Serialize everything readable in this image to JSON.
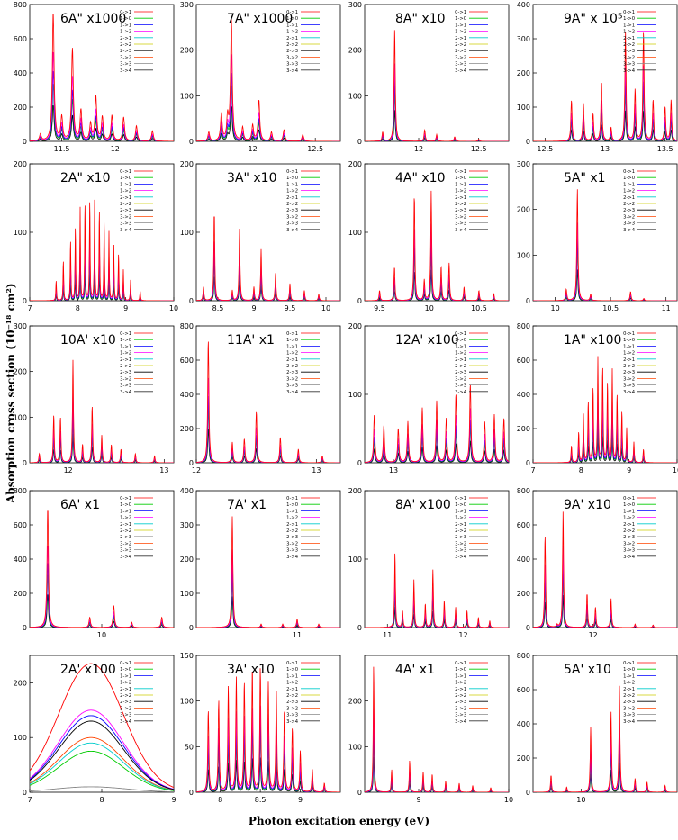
{
  "figure": {
    "ylabel": "Absorption cross section (10⁻¹⁸ cm²)",
    "xlabel": "Photon excitation energy (eV)"
  },
  "legend_entries": [
    "0->1",
    "1->0",
    "1->1",
    "1->2",
    "2->1",
    "2->2",
    "2->3",
    "3->2",
    "3->3",
    "3->4"
  ],
  "legend_colors": [
    "#ff0000",
    "#00cc00",
    "#0000ff",
    "#ff00ff",
    "#00cccc",
    "#cccc00",
    "#000000",
    "#ff4500",
    "#888888",
    "#333333"
  ],
  "chart_data": [
    {
      "type": "line",
      "title": "6A\" x1000",
      "xlim": [
        11.2,
        12.55
      ],
      "ylim": [
        0,
        800
      ],
      "yticks": [
        0,
        200,
        400,
        600,
        800
      ],
      "xticks": [
        11.5,
        12
      ],
      "peaks": [
        [
          11.3,
          40
        ],
        [
          11.42,
          750
        ],
        [
          11.5,
          140
        ],
        [
          11.6,
          540
        ],
        [
          11.68,
          180
        ],
        [
          11.77,
          100
        ],
        [
          11.82,
          260
        ],
        [
          11.88,
          140
        ],
        [
          11.97,
          150
        ],
        [
          12.08,
          140
        ],
        [
          12.2,
          90
        ],
        [
          12.35,
          60
        ]
      ],
      "width": 0.01
    },
    {
      "type": "line",
      "title": "7A\" x1000",
      "xlim": [
        11.55,
        12.7
      ],
      "ylim": [
        0,
        300
      ],
      "yticks": [
        0,
        100,
        200,
        300
      ],
      "xticks": [
        12,
        12.5
      ],
      "peaks": [
        [
          11.65,
          20
        ],
        [
          11.75,
          60
        ],
        [
          11.8,
          50
        ],
        [
          11.83,
          270
        ],
        [
          11.92,
          30
        ],
        [
          12.0,
          35
        ],
        [
          12.05,
          90
        ],
        [
          12.15,
          20
        ],
        [
          12.25,
          25
        ],
        [
          12.4,
          15
        ]
      ],
      "width": 0.008
    },
    {
      "type": "line",
      "title": "8A\" x10",
      "xlim": [
        11.55,
        12.75
      ],
      "ylim": [
        0,
        300
      ],
      "yticks": [
        0,
        100,
        200,
        300
      ],
      "xticks": [
        12,
        12.5
      ],
      "peaks": [
        [
          11.7,
          20
        ],
        [
          11.8,
          245
        ],
        [
          12.05,
          25
        ],
        [
          12.15,
          15
        ],
        [
          12.3,
          10
        ],
        [
          12.5,
          5
        ]
      ],
      "width": 0.006
    },
    {
      "type": "line",
      "title": "9A\" x 10⁵",
      "xlim": [
        12.4,
        13.6
      ],
      "ylim": [
        0,
        400
      ],
      "yticks": [
        0,
        100,
        200,
        300,
        400
      ],
      "xticks": [
        12.5,
        13,
        13.5
      ],
      "peaks": [
        [
          12.72,
          120
        ],
        [
          12.82,
          110
        ],
        [
          12.9,
          80
        ],
        [
          12.97,
          175
        ],
        [
          13.05,
          40
        ],
        [
          13.17,
          320
        ],
        [
          13.25,
          150
        ],
        [
          13.32,
          320
        ],
        [
          13.4,
          120
        ],
        [
          13.5,
          100
        ],
        [
          13.55,
          120
        ]
      ],
      "width": 0.006
    },
    {
      "type": "line",
      "title": "2A\" x10",
      "xlim": [
        7,
        10
      ],
      "ylim": [
        0,
        200
      ],
      "yticks": [
        0,
        100,
        200
      ],
      "xticks": [
        7,
        8,
        9,
        10
      ],
      "peaks": [
        [
          7.55,
          30
        ],
        [
          7.7,
          60
        ],
        [
          7.85,
          90
        ],
        [
          7.95,
          110
        ],
        [
          8.05,
          135
        ],
        [
          8.15,
          145
        ],
        [
          8.25,
          150
        ],
        [
          8.35,
          145
        ],
        [
          8.45,
          135
        ],
        [
          8.55,
          120
        ],
        [
          8.65,
          100
        ],
        [
          8.75,
          85
        ],
        [
          8.85,
          70
        ],
        [
          8.95,
          45
        ],
        [
          9.1,
          30
        ],
        [
          9.3,
          15
        ]
      ],
      "width": 0.008
    },
    {
      "type": "line",
      "title": "3A\" x10",
      "xlim": [
        8.2,
        10.2
      ],
      "ylim": [
        0,
        200
      ],
      "yticks": [
        0,
        100,
        200
      ],
      "xticks": [
        8.5,
        9,
        9.5,
        10
      ],
      "peaks": [
        [
          8.3,
          20
        ],
        [
          8.45,
          130
        ],
        [
          8.7,
          15
        ],
        [
          8.8,
          105
        ],
        [
          9.0,
          20
        ],
        [
          9.1,
          75
        ],
        [
          9.3,
          40
        ],
        [
          9.5,
          25
        ],
        [
          9.7,
          15
        ],
        [
          9.9,
          10
        ]
      ],
      "width": 0.008
    },
    {
      "type": "line",
      "title": "4A\" x10",
      "xlim": [
        9.35,
        10.8
      ],
      "ylim": [
        0,
        200
      ],
      "yticks": [
        0,
        100,
        200
      ],
      "xticks": [
        9.5,
        10,
        10.5
      ],
      "peaks": [
        [
          9.5,
          15
        ],
        [
          9.65,
          50
        ],
        [
          9.85,
          155
        ],
        [
          9.95,
          30
        ],
        [
          10.02,
          160
        ],
        [
          10.12,
          50
        ],
        [
          10.2,
          55
        ],
        [
          10.35,
          20
        ],
        [
          10.5,
          15
        ],
        [
          10.65,
          10
        ]
      ],
      "width": 0.006
    },
    {
      "type": "line",
      "title": "5A\" x1",
      "xlim": [
        9.8,
        11.1
      ],
      "ylim": [
        0,
        300
      ],
      "yticks": [
        0,
        100,
        200,
        300
      ],
      "xticks": [
        10,
        10.5,
        11
      ],
      "peaks": [
        [
          10.1,
          25
        ],
        [
          10.2,
          245
        ],
        [
          10.32,
          15
        ],
        [
          10.68,
          20
        ],
        [
          10.8,
          5
        ]
      ],
      "width": 0.006
    },
    {
      "type": "line",
      "title": "10A' x10",
      "xlim": [
        11.6,
        13.1
      ],
      "ylim": [
        0,
        300
      ],
      "yticks": [
        0,
        100,
        200,
        300
      ],
      "xticks": [
        12,
        13
      ],
      "peaks": [
        [
          11.7,
          20
        ],
        [
          11.85,
          105
        ],
        [
          11.92,
          100
        ],
        [
          12.05,
          225
        ],
        [
          12.15,
          40
        ],
        [
          12.25,
          125
        ],
        [
          12.35,
          60
        ],
        [
          12.45,
          40
        ],
        [
          12.55,
          30
        ],
        [
          12.7,
          20
        ],
        [
          12.9,
          15
        ]
      ],
      "width": 0.006
    },
    {
      "type": "line",
      "title": "11A' x1",
      "xlim": [
        12,
        13.2
      ],
      "ylim": [
        0,
        800
      ],
      "yticks": [
        0,
        200,
        400,
        600,
        800
      ],
      "xticks": [
        12,
        13
      ],
      "peaks": [
        [
          12.1,
          720
        ],
        [
          12.3,
          120
        ],
        [
          12.4,
          140
        ],
        [
          12.5,
          300
        ],
        [
          12.7,
          150
        ],
        [
          12.85,
          80
        ],
        [
          13.05,
          40
        ]
      ],
      "width": 0.006
    },
    {
      "type": "line",
      "title": "12A' x100",
      "xlim": [
        12.7,
        14.2
      ],
      "ylim": [
        0,
        200
      ],
      "yticks": [
        0,
        100,
        200
      ],
      "xticks": [
        13
      ],
      "peaks": [
        [
          12.8,
          70
        ],
        [
          12.9,
          55
        ],
        [
          13.05,
          50
        ],
        [
          13.15,
          60
        ],
        [
          13.3,
          80
        ],
        [
          13.45,
          90
        ],
        [
          13.55,
          65
        ],
        [
          13.65,
          100
        ],
        [
          13.8,
          115
        ],
        [
          13.95,
          60
        ],
        [
          14.05,
          70
        ],
        [
          14.15,
          65
        ]
      ],
      "width": 0.008
    },
    {
      "type": "line",
      "title": "1A\" x100",
      "xlim": [
        7,
        10
      ],
      "ylim": [
        0,
        800
      ],
      "yticks": [
        0,
        200,
        400,
        600,
        800
      ],
      "xticks": [
        7,
        8,
        9,
        10
      ],
      "peaks": [
        [
          7.8,
          100
        ],
        [
          7.95,
          180
        ],
        [
          8.05,
          280
        ],
        [
          8.15,
          360
        ],
        [
          8.25,
          440
        ],
        [
          8.35,
          610
        ],
        [
          8.45,
          560
        ],
        [
          8.55,
          470
        ],
        [
          8.65,
          540
        ],
        [
          8.75,
          400
        ],
        [
          8.85,
          300
        ],
        [
          8.95,
          200
        ],
        [
          9.1,
          120
        ],
        [
          9.3,
          80
        ]
      ],
      "width": 0.01
    },
    {
      "type": "line",
      "title": "6A' x1",
      "xlim": [
        9.4,
        10.6
      ],
      "ylim": [
        0,
        800
      ],
      "yticks": [
        0,
        200,
        400,
        600,
        800
      ],
      "xticks": [
        10
      ],
      "peaks": [
        [
          9.55,
          700
        ],
        [
          9.9,
          60
        ],
        [
          10.1,
          130
        ],
        [
          10.25,
          30
        ],
        [
          10.5,
          60
        ]
      ],
      "width": 0.007
    },
    {
      "type": "line",
      "title": "7A' x1",
      "xlim": [
        10.3,
        11.3
      ],
      "ylim": [
        0,
        400
      ],
      "yticks": [
        0,
        100,
        200,
        300,
        400
      ],
      "xticks": [
        11
      ],
      "peaks": [
        [
          10.55,
          325
        ],
        [
          10.75,
          10
        ],
        [
          10.9,
          10
        ],
        [
          11.0,
          25
        ],
        [
          11.15,
          10
        ]
      ],
      "width": 0.005
    },
    {
      "type": "line",
      "title": "8A' x100",
      "xlim": [
        10.7,
        12.6
      ],
      "ylim": [
        0,
        200
      ],
      "yticks": [
        0,
        100,
        200
      ],
      "xticks": [
        11,
        12
      ],
      "peaks": [
        [
          11.1,
          110
        ],
        [
          11.2,
          25
        ],
        [
          11.35,
          70
        ],
        [
          11.5,
          35
        ],
        [
          11.6,
          85
        ],
        [
          11.75,
          40
        ],
        [
          11.9,
          30
        ],
        [
          12.05,
          25
        ],
        [
          12.2,
          15
        ],
        [
          12.35,
          10
        ]
      ],
      "width": 0.007
    },
    {
      "type": "line",
      "title": "9A' x10",
      "xlim": [
        11.5,
        12.7
      ],
      "ylim": [
        0,
        800
      ],
      "yticks": [
        0,
        200,
        400,
        600,
        800
      ],
      "xticks": [
        12
      ],
      "peaks": [
        [
          11.6,
          540
        ],
        [
          11.7,
          15
        ],
        [
          11.75,
          680
        ],
        [
          11.95,
          200
        ],
        [
          12.02,
          120
        ],
        [
          12.15,
          170
        ],
        [
          12.35,
          20
        ],
        [
          12.5,
          15
        ]
      ],
      "width": 0.005
    },
    {
      "type": "line",
      "title": "2A' x100",
      "xlim": [
        7,
        9
      ],
      "ylim": [
        0,
        250
      ],
      "yticks": [
        0,
        100,
        200
      ],
      "xticks": [
        7,
        8,
        9
      ],
      "curves": [
        {
          "peak": 235,
          "center": 7.85,
          "sigma": 0.45,
          "color": "#ff0000"
        },
        {
          "peak": 150,
          "center": 7.85,
          "sigma": 0.45,
          "color": "#ff00ff"
        },
        {
          "peak": 140,
          "center": 7.85,
          "sigma": 0.45,
          "color": "#0000ff"
        },
        {
          "peak": 130,
          "center": 7.85,
          "sigma": 0.45,
          "color": "#000000"
        },
        {
          "peak": 100,
          "center": 7.85,
          "sigma": 0.45,
          "color": "#ff4500"
        },
        {
          "peak": 90,
          "center": 7.85,
          "sigma": 0.45,
          "color": "#00cccc"
        },
        {
          "peak": 75,
          "center": 7.85,
          "sigma": 0.45,
          "color": "#00cc00"
        },
        {
          "peak": 10,
          "center": 7.85,
          "sigma": 0.5,
          "color": "#888888"
        }
      ]
    },
    {
      "type": "line",
      "title": "3A' x10",
      "xlim": [
        7.7,
        9.5
      ],
      "ylim": [
        0,
        150
      ],
      "yticks": [
        0,
        50,
        100,
        150
      ],
      "xticks": [
        8,
        8.5,
        9
      ],
      "peaks": [
        [
          7.85,
          90
        ],
        [
          7.98,
          100
        ],
        [
          8.1,
          115
        ],
        [
          8.2,
          125
        ],
        [
          8.3,
          120
        ],
        [
          8.4,
          135
        ],
        [
          8.5,
          135
        ],
        [
          8.6,
          120
        ],
        [
          8.7,
          110
        ],
        [
          8.8,
          90
        ],
        [
          8.9,
          70
        ],
        [
          9.0,
          45
        ],
        [
          9.15,
          25
        ],
        [
          9.3,
          10
        ]
      ],
      "width": 0.008
    },
    {
      "type": "line",
      "title": "4A' x1",
      "xlim": [
        8.4,
        10
      ],
      "ylim": [
        0,
        300
      ],
      "yticks": [
        0,
        100,
        200
      ],
      "xticks": [
        9,
        10
      ],
      "peaks": [
        [
          8.5,
          280
        ],
        [
          8.7,
          50
        ],
        [
          8.9,
          70
        ],
        [
          9.05,
          45
        ],
        [
          9.15,
          40
        ],
        [
          9.3,
          25
        ],
        [
          9.45,
          20
        ],
        [
          9.6,
          15
        ],
        [
          9.8,
          10
        ]
      ],
      "width": 0.006
    },
    {
      "type": "line",
      "title": "5A' x10",
      "xlim": [
        9.6,
        10.8
      ],
      "ylim": [
        0,
        800
      ],
      "yticks": [
        0,
        200,
        400,
        600,
        800
      ],
      "xticks": [
        10
      ],
      "peaks": [
        [
          9.75,
          100
        ],
        [
          9.88,
          30
        ],
        [
          10.08,
          380
        ],
        [
          10.25,
          470
        ],
        [
          10.32,
          620
        ],
        [
          10.45,
          80
        ],
        [
          10.55,
          60
        ],
        [
          10.7,
          40
        ]
      ],
      "width": 0.005
    }
  ]
}
